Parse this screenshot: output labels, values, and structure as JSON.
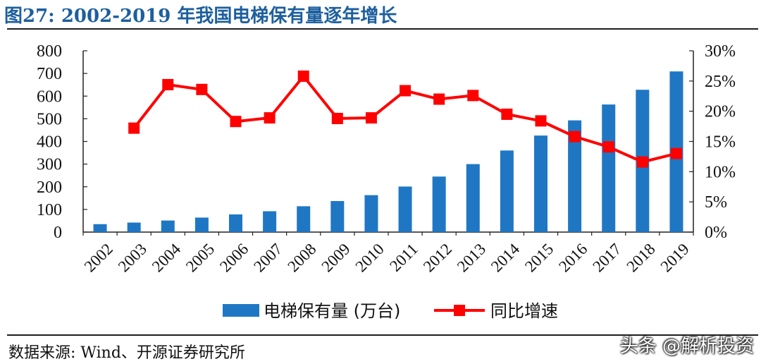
{
  "title": "图27:  2002-2019 年我国电梯保有量逐年增长",
  "source": "数据来源:  Wind、开源证券研究所",
  "watermark": "头条 @解析投资",
  "colors": {
    "bar": "#1f77c4",
    "line": "#ff0000",
    "title": "#1d5f9e",
    "axis": "#222222"
  },
  "chart_data": {
    "type": "bar",
    "categories": [
      "2002",
      "2003",
      "2004",
      "2005",
      "2006",
      "2007",
      "2008",
      "2009",
      "2010",
      "2011",
      "2012",
      "2013",
      "2014",
      "2015",
      "2016",
      "2017",
      "2018",
      "2019"
    ],
    "series": [
      {
        "name": "电梯保有量 (万台)",
        "type": "bar",
        "axis": "left",
        "values": [
          35,
          42,
          51,
          64,
          78,
          92,
          114,
          137,
          163,
          201,
          245,
          300,
          360,
          426,
          493,
          563,
          628,
          709
        ]
      },
      {
        "name": "同比增速",
        "type": "line",
        "axis": "right",
        "marker": "square",
        "values": [
          null,
          17.2,
          24.4,
          23.6,
          18.3,
          18.9,
          25.8,
          18.8,
          18.9,
          23.4,
          22.0,
          22.6,
          19.5,
          18.4,
          15.8,
          14.1,
          11.6,
          13.0
        ]
      }
    ],
    "left_axis": {
      "ylim": [
        0,
        800
      ],
      "ticks": [
        "0",
        "100",
        "200",
        "300",
        "400",
        "500",
        "600",
        "700",
        "800"
      ]
    },
    "right_axis": {
      "ylim": [
        0,
        30
      ],
      "ticks": [
        "0%",
        "5%",
        "10%",
        "15%",
        "20%",
        "25%",
        "30%"
      ]
    },
    "legend_placement": "bottom",
    "grid": false
  }
}
